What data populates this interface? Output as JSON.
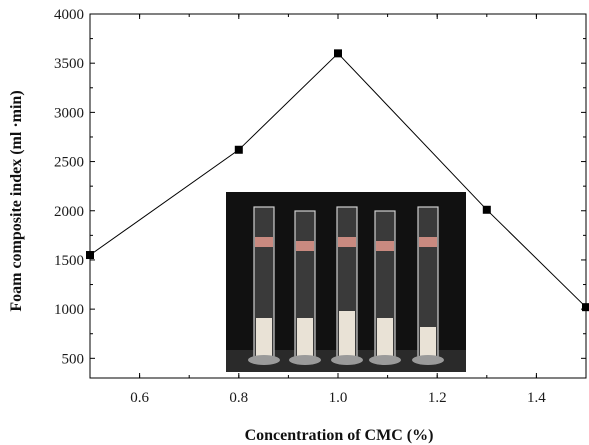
{
  "chart_data": {
    "type": "line",
    "title": "",
    "xlabel": "Concentration of CMC (%)",
    "ylabel": "Foam composite index (ml ·min)",
    "xlim": [
      0.5,
      1.5
    ],
    "ylim": [
      300,
      4000
    ],
    "xticks": [
      0.6,
      0.8,
      1.0,
      1.2,
      1.4
    ],
    "xtick_labels": [
      "0.6",
      "0.8",
      "1.0",
      "1.2",
      "1.4"
    ],
    "yticks": [
      500,
      1000,
      1500,
      2000,
      2500,
      3000,
      3500,
      4000
    ],
    "ytick_labels": [
      "500",
      "1000",
      "1500",
      "2000",
      "2500",
      "3000",
      "3500",
      "4000"
    ],
    "series": [
      {
        "x": [
          0.5,
          0.8,
          1.0,
          1.3,
          1.5
        ],
        "values": [
          1550,
          2620,
          3600,
          2010,
          1020
        ]
      }
    ],
    "grid": false,
    "legend": "none",
    "marker": "square",
    "line_color": "#000000",
    "inset_image": {
      "subject": "five graduated glass cylinders containing foam against a dark background",
      "cylinder_count": 5
    }
  }
}
